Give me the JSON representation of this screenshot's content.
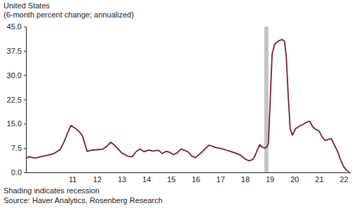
{
  "chart_data": {
    "type": "line",
    "title": "United States",
    "subtitle": "(6-month percent change; annualized)",
    "notes": [
      "Shading indicates recession",
      "Source: Haver Analytics, Rosenberg Research"
    ],
    "color": "#7d1a2c",
    "grid": false,
    "x": [
      2009.65,
      2009.75,
      2010.0,
      2010.25,
      2010.5,
      2010.75,
      2011.0,
      2011.17,
      2011.33,
      2011.45,
      2011.58,
      2011.75,
      2011.9,
      2012.0,
      2012.1,
      2012.25,
      2012.5,
      2012.75,
      2012.92,
      2013.05,
      2013.2,
      2013.35,
      2013.5,
      2013.75,
      2013.92,
      2014.1,
      2014.25,
      2014.4,
      2014.6,
      2014.75,
      2015.0,
      2015.15,
      2015.3,
      2015.45,
      2015.6,
      2015.75,
      2015.9,
      2016.05,
      2016.2,
      2016.35,
      2016.5,
      2016.65,
      2016.8,
      2016.95,
      2017.05,
      2017.2,
      2017.35,
      2017.5,
      2017.7,
      2017.9,
      2018.1,
      2018.3,
      2018.5,
      2018.65,
      2018.8,
      2018.9,
      2019.0,
      2019.1,
      2019.2,
      2019.3,
      2019.38,
      2019.45,
      2019.52,
      2019.6,
      2019.7,
      2019.85,
      2020.0,
      2020.1,
      2020.17,
      2020.25,
      2020.33,
      2020.42,
      2020.55,
      2020.7,
      2020.85,
      2021.0,
      2021.12,
      2021.25,
      2021.38,
      2021.5,
      2021.62,
      2021.75,
      2021.88,
      2022.0,
      2022.12,
      2022.25,
      2022.38,
      2022.5,
      2022.62,
      2022.72
    ],
    "values": [
      4.5,
      4.8,
      4.4,
      4.9,
      5.3,
      5.8,
      7.0,
      9.5,
      12.5,
      14.5,
      13.8,
      12.8,
      11.5,
      9.0,
      6.5,
      6.8,
      7.0,
      7.2,
      8.2,
      9.3,
      8.5,
      7.3,
      6.0,
      5.0,
      4.8,
      6.5,
      7.2,
      6.4,
      6.9,
      6.6,
      6.8,
      5.8,
      6.5,
      6.2,
      5.5,
      6.0,
      7.2,
      6.8,
      6.3,
      5.0,
      4.6,
      5.6,
      6.6,
      7.8,
      8.4,
      8.0,
      7.6,
      7.4,
      7.0,
      6.5,
      6.0,
      5.4,
      4.2,
      3.6,
      3.9,
      5.0,
      7.0,
      8.5,
      7.8,
      7.5,
      7.8,
      9.0,
      22.0,
      36.5,
      39.5,
      40.5,
      41.0,
      40.5,
      36.0,
      24.0,
      13.5,
      11.5,
      13.5,
      14.2,
      14.8,
      15.5,
      15.8,
      14.0,
      13.2,
      12.8,
      11.0,
      9.8,
      10.2,
      10.4,
      8.5,
      6.5,
      3.8,
      1.8,
      0.6,
      0.2
    ],
    "recession": [
      2019.28,
      2019.45
    ],
    "xlim": [
      2009.62,
      2022.78
    ],
    "xticks": [
      {
        "value": 2011.5,
        "label": "11"
      },
      {
        "value": 2012.5,
        "label": "12"
      },
      {
        "value": 2013.5,
        "label": "13"
      },
      {
        "value": 2014.5,
        "label": "14"
      },
      {
        "value": 2015.5,
        "label": "15"
      },
      {
        "value": 2016.5,
        "label": "16"
      },
      {
        "value": 2017.5,
        "label": "17"
      },
      {
        "value": 2018.5,
        "label": "18"
      },
      {
        "value": 2019.5,
        "label": "19"
      },
      {
        "value": 2020.5,
        "label": "20"
      },
      {
        "value": 2021.5,
        "label": "21"
      },
      {
        "value": 2022.5,
        "label": "22"
      }
    ],
    "ylim": [
      0,
      45
    ],
    "yticks": [
      {
        "value": 0,
        "label": "0.0"
      },
      7.5,
      {
        "value": 15,
        "label": "15.0"
      },
      22.5,
      {
        "value": 30,
        "label": "30.0"
      },
      37.5,
      {
        "value": 45,
        "label": "45.0"
      }
    ]
  }
}
